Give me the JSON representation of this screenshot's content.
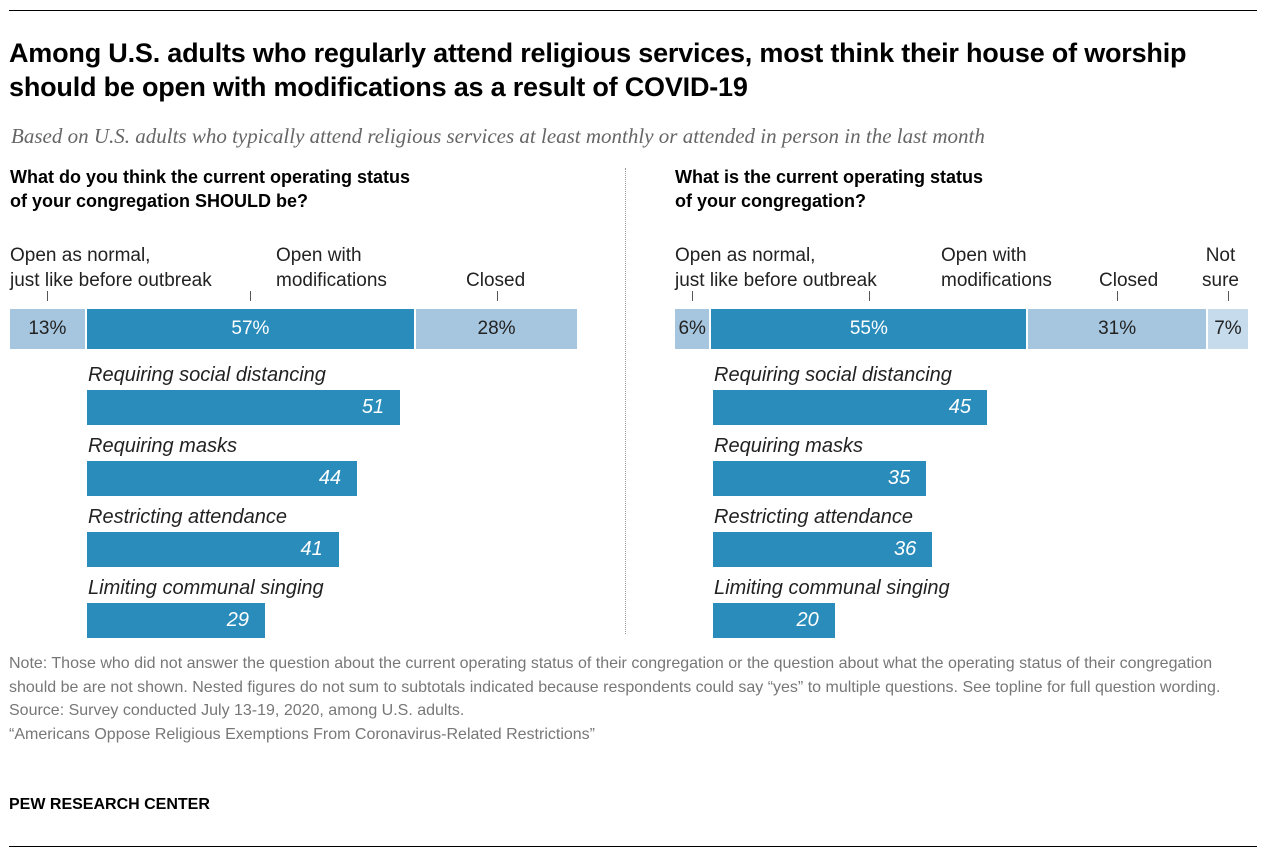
{
  "title": "Among U.S. adults who regularly attend religious services, most think their house of worship should be open with modifications as a result of COVID-19",
  "subtitle": "Based on U.S. adults who typically attend religious services at least monthly or attended in person in the last month",
  "colors": {
    "open_normal": "#a6c6df",
    "modifications": "#2a8cbb",
    "closed": "#a6c6df",
    "not_sure": "#c6dbec"
  },
  "chart_data": [
    {
      "type": "bar",
      "stacked": true,
      "title": "What do you think the current operating status of your congregation SHOULD be?",
      "categories": [
        "Open as normal, just like before outbreak",
        "Open with modifications",
        "Closed"
      ],
      "values": [
        13,
        57,
        28
      ],
      "value_labels": [
        "13%",
        "57%",
        "28%"
      ],
      "sub_categories": [
        "Requiring social distancing",
        "Requiring masks",
        "Restricting attendance",
        "Limiting communal singing"
      ],
      "sub_values": [
        51,
        44,
        41,
        29
      ]
    },
    {
      "type": "bar",
      "stacked": true,
      "title": "What is the current operating status of your congregation?",
      "categories": [
        "Open as normal, just like before outbreak",
        "Open with modifications",
        "Closed",
        "Not sure"
      ],
      "values": [
        6,
        55,
        31,
        7
      ],
      "value_labels": [
        "6%",
        "55%",
        "31%",
        "7%"
      ],
      "sub_categories": [
        "Requiring social distancing",
        "Requiring masks",
        "Restricting attendance",
        "Limiting communal singing"
      ],
      "sub_values": [
        45,
        35,
        36,
        20
      ]
    }
  ],
  "labels": {
    "open_normal_1": "Open as normal,",
    "open_normal_2": "just like before outbreak",
    "mod_1": "Open with",
    "mod_2": "modifications",
    "closed": "Closed",
    "notsure_1": "Not",
    "notsure_2": "sure",
    "q_left_1": "What do you think the current operating status",
    "q_left_2": "of your congregation SHOULD be?",
    "q_right_1": "What is the current operating status",
    "q_right_2": "of your congregation?"
  },
  "note": "Note: Those who did not answer the question about the current operating status of their congregation or the question about what the operating status of their congregation should be are not shown. Nested figures do not sum to subtotals indicated because respondents could say “yes” to multiple questions. See topline for full question wording.",
  "source": "Source: Survey conducted July 13-19, 2020, among U.S. adults.",
  "report": "“Americans Oppose Religious Exemptions From Coronavirus-Related Restrictions”",
  "brand": "PEW RESEARCH CENTER"
}
